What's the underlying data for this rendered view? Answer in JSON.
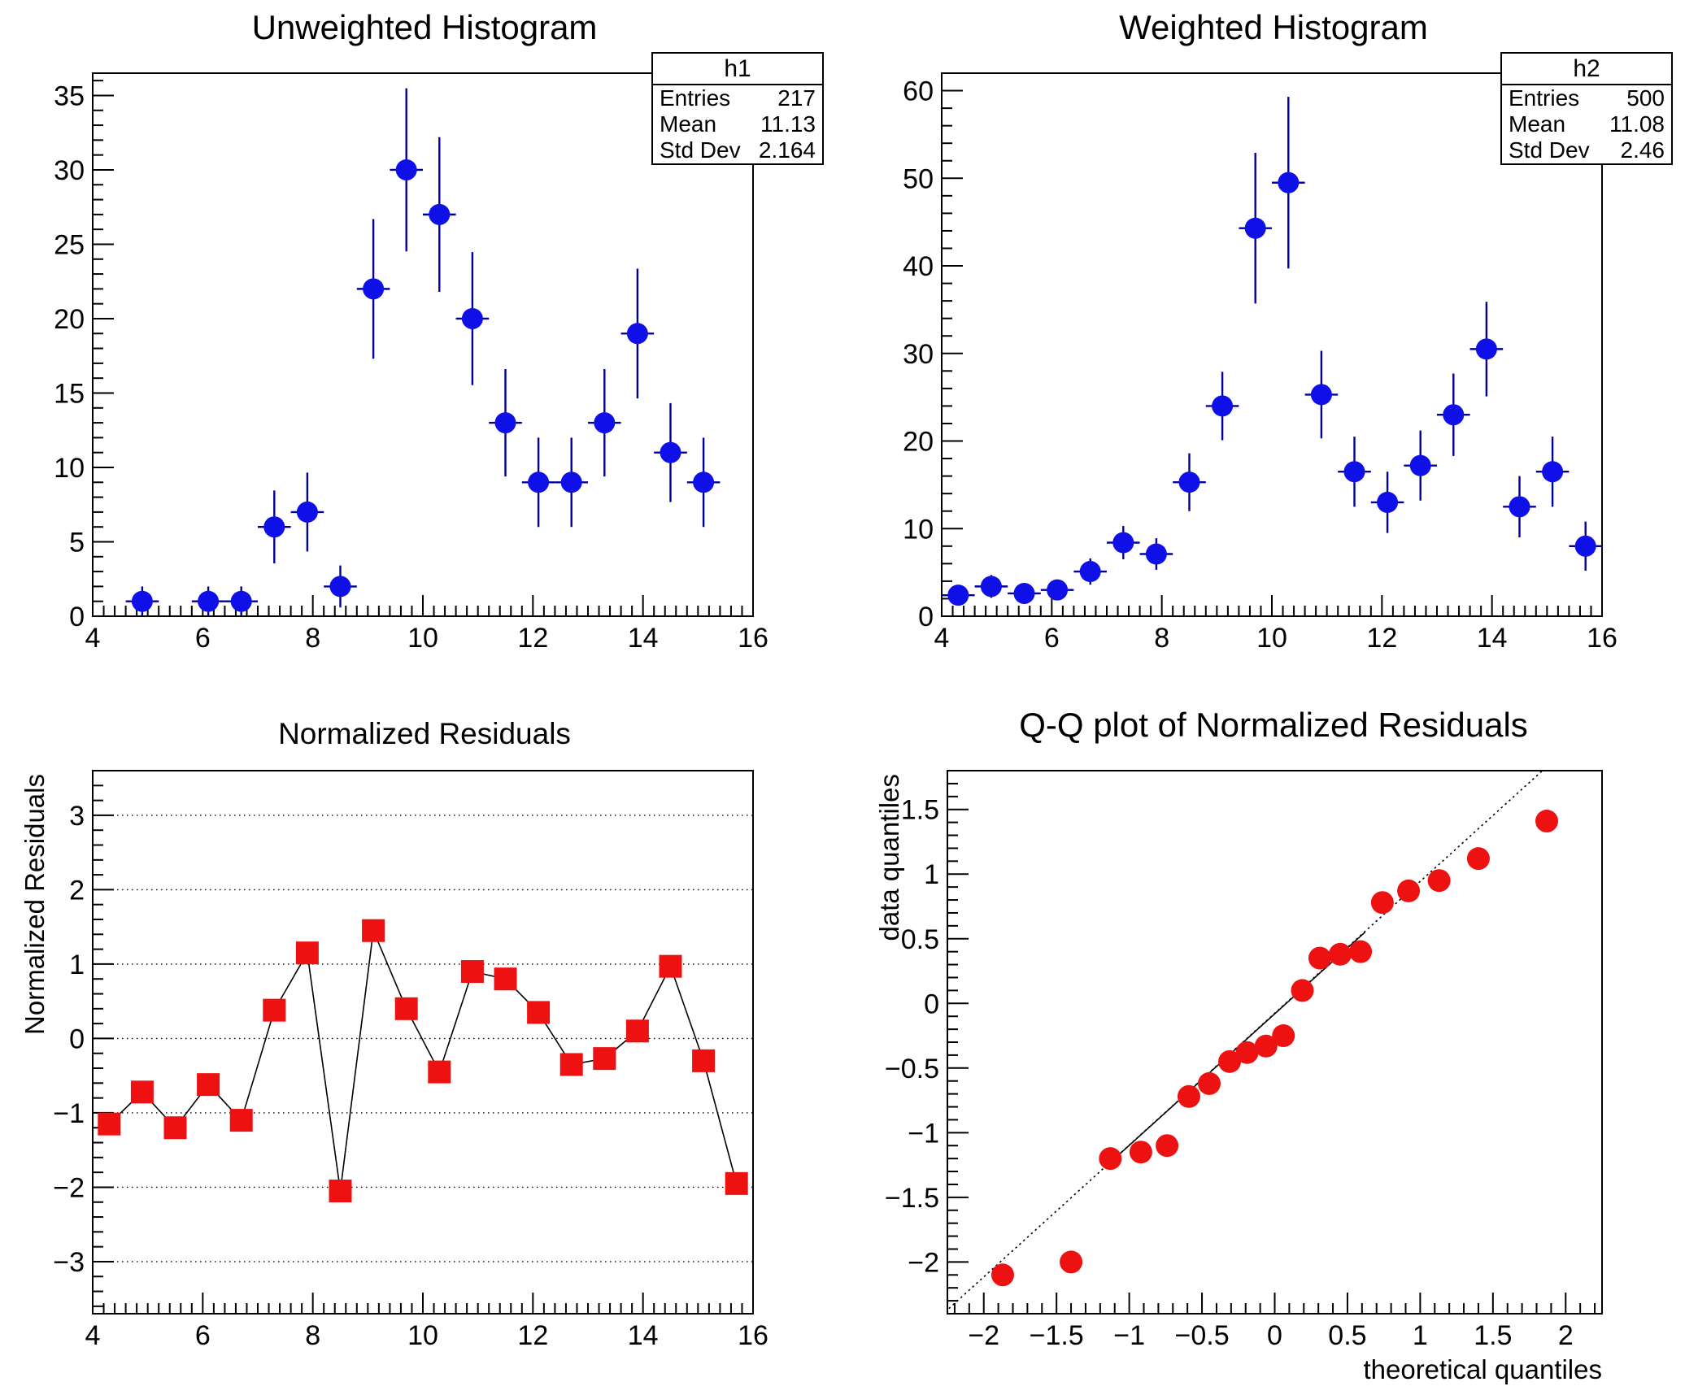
{
  "canvas": {
    "background": "#ffffff"
  },
  "colors": {
    "blue_marker": "#0f0fe8",
    "blue_errorbar": "#00009a",
    "red_marker": "#ee1111",
    "black": "#000000"
  },
  "pads": [
    {
      "title": "Unweighted Histogram"
    },
    {
      "title": "Weighted Histogram"
    },
    {
      "title": "Normalized Residuals"
    },
    {
      "title": "Q-Q plot of Normalized Residuals"
    }
  ],
  "stats_boxes": [
    {
      "title": "h1",
      "rows": [
        {
          "label": "Entries",
          "value": "217"
        },
        {
          "label": "Mean",
          "value": "11.13"
        },
        {
          "label": "Std Dev",
          "value": "2.164"
        }
      ]
    },
    {
      "title": "h2",
      "rows": [
        {
          "label": "Entries",
          "value": "500"
        },
        {
          "label": "Mean",
          "value": "11.08"
        },
        {
          "label": "Std Dev",
          "value": "2.46"
        }
      ]
    }
  ],
  "chart_data": [
    {
      "id": "unweighted-histogram",
      "type": "scatter",
      "title": "Unweighted Histogram",
      "xlabel": "",
      "ylabel": "",
      "xlim": [
        4,
        16
      ],
      "ylim": [
        0,
        36.5
      ],
      "xticks": [
        {
          "v": 4,
          "label": "4"
        },
        {
          "v": 6,
          "label": "6"
        },
        {
          "v": 8,
          "label": "8"
        },
        {
          "v": 10,
          "label": "10"
        },
        {
          "v": 12,
          "label": "12"
        },
        {
          "v": 14,
          "label": "14"
        },
        {
          "v": 16,
          "label": "16"
        }
      ],
      "yticks": [
        {
          "v": 0,
          "label": "0"
        },
        {
          "v": 5,
          "label": "5"
        },
        {
          "v": 10,
          "label": "10"
        },
        {
          "v": 15,
          "label": "15"
        },
        {
          "v": 20,
          "label": "20"
        },
        {
          "v": 25,
          "label": "25"
        },
        {
          "v": 30,
          "label": "30"
        },
        {
          "v": 35,
          "label": "35"
        }
      ],
      "xminor": 0.2,
      "yminor": 1,
      "grid": false,
      "marker": "circle",
      "marker_size": 13,
      "marker_color": "#0f0fe8",
      "errorbar_color": "#00009a",
      "xerr": 0.3,
      "x": [
        4.9,
        6.1,
        6.7,
        7.3,
        7.9,
        8.5,
        9.1,
        9.7,
        10.3,
        10.9,
        11.5,
        12.1,
        12.7,
        13.3,
        13.9,
        14.5,
        15.1
      ],
      "y": [
        1,
        1,
        1,
        6,
        7,
        2,
        22,
        30,
        27,
        20,
        13,
        9,
        9,
        13,
        19,
        11,
        9
      ],
      "yerr": [
        1,
        1,
        1,
        2.45,
        2.65,
        1.41,
        4.69,
        5.48,
        5.2,
        4.47,
        3.61,
        3.0,
        3.0,
        3.61,
        4.36,
        3.32,
        3.0
      ]
    },
    {
      "id": "weighted-histogram",
      "type": "scatter",
      "title": "Weighted Histogram",
      "xlabel": "",
      "ylabel": "",
      "xlim": [
        4,
        16
      ],
      "ylim": [
        0,
        62
      ],
      "xticks": [
        {
          "v": 4,
          "label": "4"
        },
        {
          "v": 6,
          "label": "6"
        },
        {
          "v": 8,
          "label": "8"
        },
        {
          "v": 10,
          "label": "10"
        },
        {
          "v": 12,
          "label": "12"
        },
        {
          "v": 14,
          "label": "14"
        },
        {
          "v": 16,
          "label": "16"
        }
      ],
      "yticks": [
        {
          "v": 0,
          "label": "0"
        },
        {
          "v": 10,
          "label": "10"
        },
        {
          "v": 20,
          "label": "20"
        },
        {
          "v": 30,
          "label": "30"
        },
        {
          "v": 40,
          "label": "40"
        },
        {
          "v": 50,
          "label": "50"
        },
        {
          "v": 60,
          "label": "60"
        }
      ],
      "xminor": 0.2,
      "yminor": 2,
      "grid": false,
      "marker": "circle",
      "marker_size": 13,
      "marker_color": "#0f0fe8",
      "errorbar_color": "#00009a",
      "xerr": 0.3,
      "x": [
        4.3,
        4.9,
        5.5,
        6.1,
        6.7,
        7.3,
        7.9,
        8.5,
        9.1,
        9.7,
        10.3,
        10.9,
        11.5,
        12.1,
        12.7,
        13.3,
        13.9,
        14.5,
        15.1,
        15.7
      ],
      "y": [
        2.4,
        3.4,
        2.6,
        3.0,
        5.1,
        8.4,
        7.1,
        15.3,
        24.0,
        44.3,
        49.5,
        25.3,
        16.5,
        13.0,
        17.2,
        23.0,
        30.5,
        12.5,
        16.5,
        8.0
      ],
      "yerr": [
        1.0,
        1.3,
        1.0,
        1.1,
        1.5,
        1.9,
        1.8,
        3.3,
        3.9,
        8.6,
        9.8,
        5.0,
        4.0,
        3.5,
        4.0,
        4.7,
        5.4,
        3.5,
        4.0,
        2.8
      ]
    },
    {
      "id": "normalized-residuals",
      "type": "line-scatter",
      "title": "Normalized Residuals",
      "xlabel": "",
      "ylabel": "Normalized Residuals",
      "xlim": [
        4,
        16
      ],
      "ylim": [
        -3.7,
        3.6
      ],
      "xticks": [
        {
          "v": 4,
          "label": "4"
        },
        {
          "v": 6,
          "label": "6"
        },
        {
          "v": 8,
          "label": "8"
        },
        {
          "v": 10,
          "label": "10"
        },
        {
          "v": 12,
          "label": "12"
        },
        {
          "v": 14,
          "label": "14"
        },
        {
          "v": 16,
          "label": "16"
        }
      ],
      "yticks": [
        {
          "v": 3,
          "label": "3"
        },
        {
          "v": 2,
          "label": "2"
        },
        {
          "v": 1,
          "label": "1"
        },
        {
          "v": 0,
          "label": "0"
        },
        {
          "v": -1,
          "label": "−1"
        },
        {
          "v": -2,
          "label": "−2"
        },
        {
          "v": -3,
          "label": "−3"
        }
      ],
      "xminor": 0.2,
      "yminor": 0.2,
      "grid": true,
      "marker": "square",
      "marker_size": 14,
      "marker_color": "#ee1111",
      "connect_color": "#000000",
      "x": [
        4.3,
        4.9,
        5.5,
        6.1,
        6.7,
        7.3,
        7.9,
        8.5,
        9.1,
        9.7,
        10.3,
        10.9,
        11.5,
        12.1,
        12.7,
        13.3,
        13.9,
        14.5,
        15.1,
        15.7
      ],
      "y": [
        -1.15,
        -0.72,
        -1.2,
        -0.62,
        -1.1,
        0.38,
        1.15,
        -2.05,
        1.45,
        0.4,
        -0.45,
        0.9,
        0.8,
        0.35,
        -0.35,
        -0.27,
        0.1,
        0.97,
        -0.3,
        -1.95
      ]
    },
    {
      "id": "qq-plot",
      "type": "scatter",
      "title": "Q-Q plot of Normalized Residuals",
      "xlabel": "theoretical quantiles",
      "ylabel": "data quantiles",
      "xlim": [
        -2.25,
        2.25
      ],
      "ylim": [
        -2.4,
        1.8
      ],
      "xticks": [
        {
          "v": -2,
          "label": "−2"
        },
        {
          "v": -1.5,
          "label": "−1.5"
        },
        {
          "v": -1,
          "label": "−1"
        },
        {
          "v": -0.5,
          "label": "−0.5"
        },
        {
          "v": 0,
          "label": "0"
        },
        {
          "v": 0.5,
          "label": "0.5"
        },
        {
          "v": 1,
          "label": "1"
        },
        {
          "v": 1.5,
          "label": "1.5"
        },
        {
          "v": 2,
          "label": "2"
        }
      ],
      "yticks": [
        {
          "v": 1.5,
          "label": "1.5"
        },
        {
          "v": 1,
          "label": "1"
        },
        {
          "v": 0.5,
          "label": "0.5"
        },
        {
          "v": 0,
          "label": "0"
        },
        {
          "v": -0.5,
          "label": "−0.5"
        },
        {
          "v": -1,
          "label": "−1"
        },
        {
          "v": -1.5,
          "label": "−1.5"
        },
        {
          "v": -2,
          "label": "−2"
        }
      ],
      "xminor": 0.1,
      "yminor": 0.1,
      "grid": false,
      "marker": "circle",
      "marker_size": 14,
      "marker_color": "#ee1111",
      "ref_line": {
        "dotted_from": [
          -2.24,
          -2.36
        ],
        "dotted_to": [
          1.84,
          1.8
        ],
        "solid_from": [
          -1.13,
          -1.23
        ],
        "solid_to": [
          0.62,
          0.55
        ]
      },
      "x": [
        -1.87,
        -1.4,
        -1.13,
        -0.92,
        -0.74,
        -0.59,
        -0.45,
        -0.31,
        -0.19,
        -0.06,
        0.06,
        0.19,
        0.31,
        0.45,
        0.59,
        0.74,
        0.92,
        1.13,
        1.4,
        1.87
      ],
      "y": [
        -2.1,
        -2.0,
        -1.2,
        -1.15,
        -1.1,
        -0.72,
        -0.62,
        -0.45,
        -0.38,
        -0.33,
        -0.25,
        0.1,
        0.35,
        0.38,
        0.4,
        0.78,
        0.87,
        0.95,
        1.12,
        1.41
      ]
    }
  ]
}
